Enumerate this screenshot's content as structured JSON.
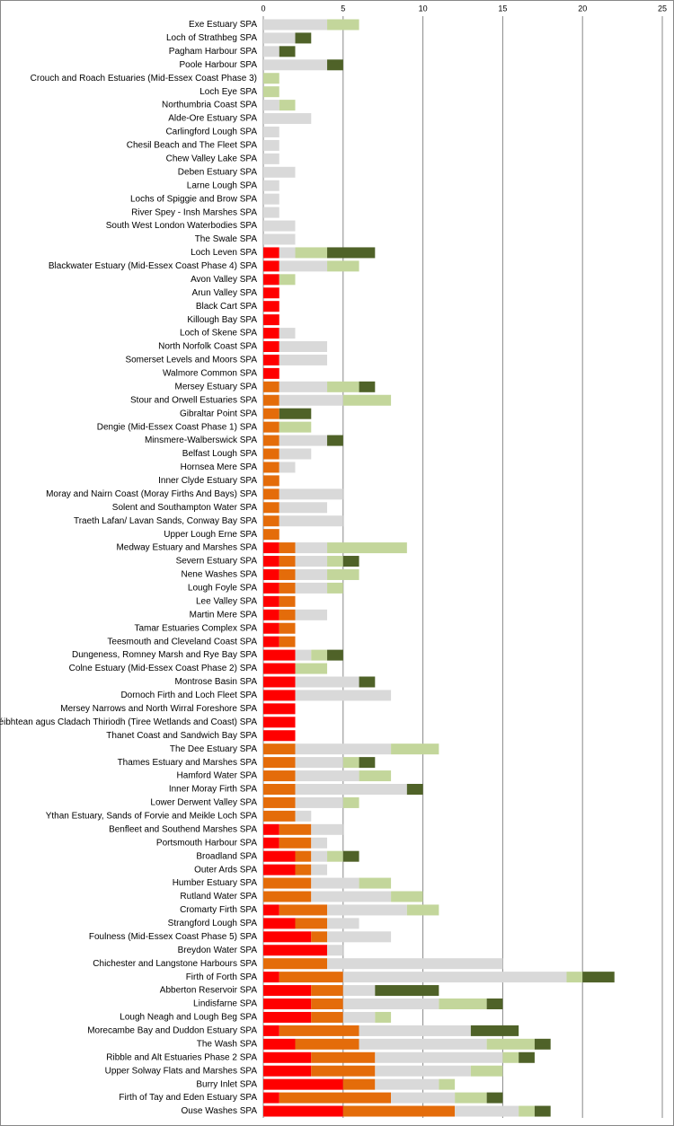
{
  "chart_data": {
    "type": "bar",
    "orientation": "horizontal",
    "stacked": true,
    "grid": true,
    "categories": [
      "Exe Estuary SPA",
      "Loch of Strathbeg SPA",
      "Pagham Harbour SPA",
      "Poole Harbour SPA",
      "Crouch and Roach Estuaries (Mid-Essex Coast Phase 3)",
      "Loch Eye SPA",
      "Northumbria Coast SPA",
      "Alde-Ore Estuary SPA",
      "Carlingford Lough SPA",
      "Chesil Beach and The Fleet SPA",
      "Chew Valley Lake SPA",
      "Deben Estuary SPA",
      "Larne Lough SPA",
      "Lochs of Spiggie and Brow SPA",
      "River Spey - Insh Marshes SPA",
      "South West London Waterbodies SPA",
      "The Swale SPA",
      "Loch Leven SPA",
      "Blackwater Estuary (Mid-Essex Coast Phase 4) SPA",
      "Avon Valley SPA",
      "Arun Valley SPA",
      "Black Cart SPA",
      "Killough Bay SPA",
      "Loch of Skene SPA",
      "North Norfolk Coast SPA",
      "Somerset Levels and Moors SPA",
      "Walmore Common SPA",
      "Mersey Estuary SPA",
      "Stour and Orwell Estuaries SPA",
      "Gibraltar Point SPA",
      "Dengie (Mid-Essex Coast Phase 1) SPA",
      "Minsmere-Walberswick SPA",
      "Belfast Lough SPA",
      "Hornsea Mere SPA",
      "Inner Clyde Estuary SPA",
      "Moray and Nairn Coast (Moray Firths And Bays) SPA",
      "Solent and Southampton Water SPA",
      "Traeth Lafan/ Lavan Sands, Conway Bay SPA",
      "Upper Lough Erne SPA",
      "Medway Estuary and Marshes SPA",
      "Severn Estuary SPA",
      "Nene Washes SPA",
      "Lough Foyle SPA",
      "Lee Valley SPA",
      "Martin Mere SPA",
      "Tamar Estuaries Complex SPA",
      "Teesmouth and Cleveland Coast SPA",
      "Dungeness, Romney Marsh and Rye Bay SPA",
      "Colne Estuary (Mid-Essex Coast Phase 2) SPA",
      "Montrose Basin SPA",
      "Dornoch Firth and Loch Fleet SPA",
      "Mersey Narrows and North Wirral Foreshore SPA",
      "Sléibhtean agus Cladach Thiriodh (Tiree Wetlands and Coast) SPA",
      "Thanet Coast and Sandwich Bay SPA",
      "The Dee Estuary SPA",
      "Thames Estuary and Marshes SPA",
      "Hamford Water SPA",
      "Inner Moray Firth SPA",
      "Lower Derwent Valley SPA",
      "Ythan Estuary, Sands of Forvie and Meikle Loch SPA",
      "Benfleet and Southend Marshes SPA",
      "Portsmouth Harbour SPA",
      "Broadland SPA",
      "Outer Ards SPA",
      "Humber Estuary SPA",
      "Rutland Water SPA",
      "Cromarty Firth SPA",
      "Strangford Lough SPA",
      "Foulness (Mid-Essex Coast Phase 5) SPA",
      "Breydon Water SPA",
      "Chichester and Langstone Harbours SPA",
      "Firth of Forth SPA",
      "Abberton Reservoir SPA",
      "Lindisfarne SPA",
      "Lough Neagh and Lough Beg SPA",
      "Morecambe Bay and Duddon Estuary SPA",
      "The Wash SPA",
      "Ribble and Alt Estuaries Phase 2 SPA",
      "Upper Solway Flats and Marshes SPA",
      "Burry Inlet SPA",
      "Firth of Tay and Eden Estuary SPA",
      "Ouse Washes SPA"
    ],
    "series": [
      {
        "color": "#ff0000",
        "values": [
          0,
          0,
          0,
          0,
          0,
          0,
          0,
          0,
          0,
          0,
          0,
          0,
          0,
          0,
          0,
          0,
          0,
          1,
          1,
          1,
          1,
          1,
          1,
          1,
          1,
          1,
          1,
          0,
          0,
          0,
          0,
          0,
          0,
          0,
          0,
          0,
          0,
          0,
          0,
          1,
          1,
          1,
          1,
          1,
          1,
          1,
          1,
          2,
          2,
          2,
          2,
          2,
          2,
          2,
          0,
          0,
          0,
          0,
          0,
          0,
          1,
          1,
          2,
          2,
          0,
          0,
          1,
          2,
          3,
          4,
          0,
          1,
          3,
          3,
          3,
          1,
          2,
          3,
          3,
          5,
          1,
          5
        ]
      },
      {
        "color": "#e46c0a",
        "values": [
          0,
          0,
          0,
          0,
          0,
          0,
          0,
          0,
          0,
          0,
          0,
          0,
          0,
          0,
          0,
          0,
          0,
          0,
          0,
          0,
          0,
          0,
          0,
          0,
          0,
          0,
          0,
          1,
          1,
          1,
          1,
          1,
          1,
          1,
          1,
          1,
          1,
          1,
          1,
          1,
          1,
          1,
          1,
          1,
          1,
          1,
          1,
          0,
          0,
          0,
          0,
          0,
          0,
          0,
          2,
          2,
          2,
          2,
          2,
          2,
          2,
          2,
          1,
          1,
          3,
          3,
          3,
          2,
          1,
          0,
          4,
          4,
          2,
          2,
          2,
          5,
          4,
          4,
          4,
          2,
          7,
          7
        ]
      },
      {
        "color": "#d9d9d9",
        "values": [
          4,
          2,
          1,
          4,
          0,
          0,
          1,
          3,
          1,
          1,
          1,
          2,
          1,
          1,
          1,
          2,
          2,
          1,
          3,
          0,
          0,
          0,
          0,
          1,
          3,
          3,
          0,
          3,
          4,
          0,
          0,
          3,
          2,
          1,
          0,
          4,
          3,
          4,
          0,
          2,
          2,
          2,
          2,
          0,
          2,
          0,
          0,
          1,
          0,
          4,
          6,
          0,
          0,
          0,
          6,
          3,
          4,
          7,
          3,
          1,
          2,
          1,
          1,
          1,
          3,
          5,
          5,
          2,
          4,
          1,
          11,
          14,
          2,
          6,
          2,
          7,
          8,
          8,
          6,
          4,
          4,
          4
        ]
      },
      {
        "color": "#c3d69b",
        "values": [
          2,
          0,
          0,
          0,
          1,
          1,
          1,
          0,
          0,
          0,
          0,
          0,
          0,
          0,
          0,
          0,
          0,
          2,
          2,
          1,
          0,
          0,
          0,
          0,
          0,
          0,
          0,
          2,
          3,
          0,
          2,
          0,
          0,
          0,
          0,
          0,
          0,
          0,
          0,
          5,
          1,
          2,
          1,
          0,
          0,
          0,
          0,
          1,
          2,
          0,
          0,
          0,
          0,
          0,
          3,
          1,
          2,
          0,
          1,
          0,
          0,
          0,
          1,
          0,
          2,
          2,
          2,
          0,
          0,
          0,
          0,
          1,
          0,
          3,
          1,
          0,
          3,
          1,
          2,
          1,
          2,
          1
        ]
      },
      {
        "color": "#4f6228",
        "values": [
          0,
          1,
          1,
          1,
          0,
          0,
          0,
          0,
          0,
          0,
          0,
          0,
          0,
          0,
          0,
          0,
          0,
          3,
          0,
          0,
          0,
          0,
          0,
          0,
          0,
          0,
          0,
          1,
          0,
          2,
          0,
          1,
          0,
          0,
          0,
          0,
          0,
          0,
          0,
          0,
          1,
          0,
          0,
          0,
          0,
          0,
          0,
          1,
          0,
          1,
          0,
          0,
          0,
          0,
          0,
          1,
          0,
          1,
          0,
          0,
          0,
          0,
          1,
          0,
          0,
          0,
          0,
          0,
          0,
          0,
          0,
          2,
          4,
          1,
          0,
          3,
          1,
          1,
          0,
          0,
          1,
          1
        ]
      }
    ],
    "xlim": [
      0,
      25
    ],
    "xticks": [
      0,
      5,
      10,
      15,
      20,
      25
    ]
  }
}
